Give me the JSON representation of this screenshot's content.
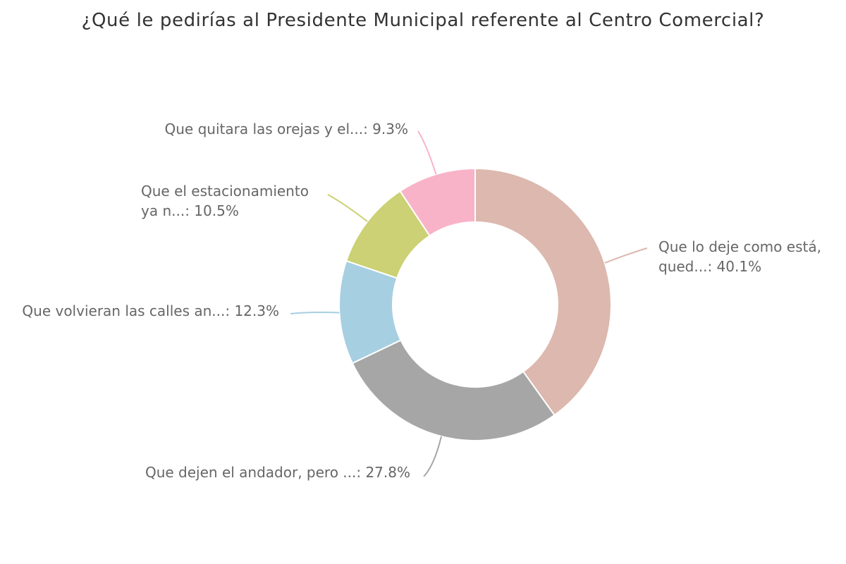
{
  "chart_data": {
    "type": "pie",
    "style": "donut",
    "title": "¿Qué le pedirías al Presidente Municipal referente al Centro Comercial?",
    "start_angle_deg": 0,
    "slices": [
      {
        "label": "Que lo deje como está, qued...: 40.1%",
        "lines": [
          "Que lo deje como está,",
          "qued...: 40.1%"
        ],
        "value": 40.1,
        "color": "#dcb8ae"
      },
      {
        "label": "Que dejen el andador, pero ...: 27.8%",
        "lines": [
          "Que dejen el andador, pero ...: 27.8%"
        ],
        "value": 27.8,
        "color": "#a6a6a6"
      },
      {
        "label": "Que volvieran las calles an...: 12.3%",
        "lines": [
          "Que volvieran las calles an...: 12.3%"
        ],
        "value": 12.3,
        "color": "#a7cfe2"
      },
      {
        "label": "Que el estacionamiento ya n...: 10.5%",
        "lines": [
          "Que el estacionamiento",
          "ya n...: 10.5%"
        ],
        "value": 10.5,
        "color": "#cbd174"
      },
      {
        "label": "Que quitara las orejas y el...: 9.3%",
        "lines": [
          "Que quitara las orejas y el...: 9.3%"
        ],
        "value": 9.3,
        "color": "#f8b3c9"
      }
    ]
  }
}
